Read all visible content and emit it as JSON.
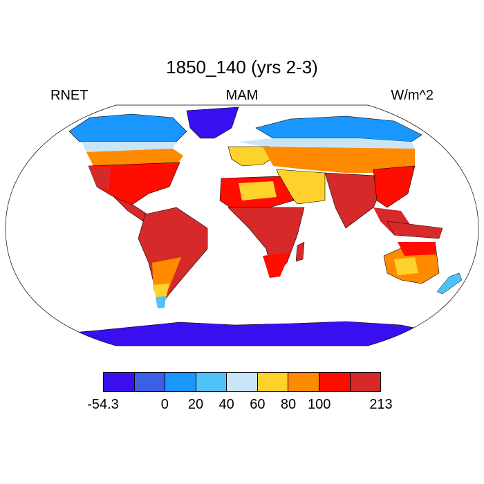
{
  "title": "1850_140 (yrs 2-3)",
  "left_label": "RNET",
  "center_label": "MAM",
  "right_label": "W/m^2",
  "colorbar": {
    "colors": [
      "#3a0fef",
      "#3c5fe6",
      "#1a96ff",
      "#4fc2f7",
      "#c8e6f8",
      "#fdd22a",
      "#ff8a00",
      "#ff0d00",
      "#d62a2a"
    ],
    "labels": [
      "-54.3",
      "0",
      "20",
      "40",
      "60",
      "80",
      "100",
      "213"
    ]
  },
  "colors": {
    "land_hot": "#d62a2a",
    "land_red": "#ff0d00",
    "land_orange": "#ff8a00",
    "land_yellow": "#fdd22a",
    "land_pale": "#c8e6f8",
    "land_sky": "#4fc2f7",
    "land_blue": "#1a96ff",
    "ice": "#3a0fef"
  }
}
